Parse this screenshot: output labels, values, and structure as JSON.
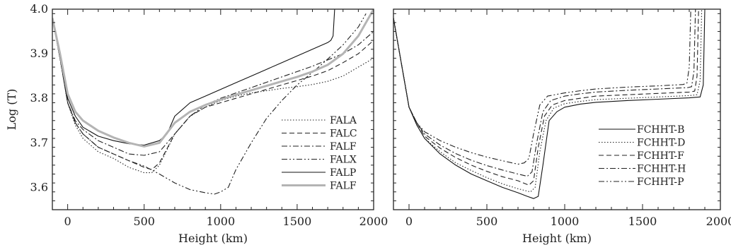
{
  "chart_data": [
    {
      "type": "line",
      "xlabel": "Height (km)",
      "ylabel": "Log (T)",
      "xlim": [
        -100,
        2000
      ],
      "ylim": [
        3.55,
        4.0
      ],
      "xticks": [
        0,
        500,
        1000,
        1500,
        2000
      ],
      "yticks": [
        3.6,
        3.7,
        3.8,
        3.9,
        4.0
      ],
      "xticklabels": [
        "0",
        "500",
        "1000",
        "1500",
        "2000"
      ],
      "yticklabels": [
        "3.6",
        "3.7",
        "3.8",
        "3.9",
        "4.0"
      ],
      "legend_position": "lower-right",
      "series": [
        {
          "name": "FALA",
          "style": "dotted",
          "color": "#222222",
          "x": [
            -100,
            -50,
            0,
            50,
            100,
            200,
            300,
            400,
            500,
            550,
            600,
            700,
            800,
            900,
            1000,
            1100,
            1200,
            1300,
            1400,
            1500,
            1600,
            1700,
            1800,
            1900,
            2000
          ],
          "y": [
            3.98,
            3.89,
            3.79,
            3.74,
            3.71,
            3.68,
            3.665,
            3.645,
            3.633,
            3.633,
            3.65,
            3.72,
            3.76,
            3.78,
            3.795,
            3.805,
            3.812,
            3.817,
            3.822,
            3.826,
            3.831,
            3.838,
            3.85,
            3.87,
            3.89
          ]
        },
        {
          "name": "FALC",
          "style": "dashed",
          "color": "#222222",
          "x": [
            -100,
            -50,
            0,
            50,
            100,
            200,
            300,
            400,
            500,
            550,
            600,
            700,
            800,
            900,
            1000,
            1100,
            1200,
            1300,
            1400,
            1500,
            1600,
            1700,
            1800,
            1900,
            2000
          ],
          "y": [
            3.98,
            3.89,
            3.79,
            3.745,
            3.72,
            3.69,
            3.675,
            3.66,
            3.645,
            3.64,
            3.655,
            3.72,
            3.76,
            3.78,
            3.79,
            3.8,
            3.81,
            3.82,
            3.83,
            3.84,
            3.85,
            3.862,
            3.88,
            3.9,
            3.93
          ]
        },
        {
          "name": "FALF",
          "style": "dashdot",
          "color": "#222222",
          "x": [
            -100,
            -50,
            0,
            50,
            100,
            200,
            300,
            400,
            500,
            600,
            700,
            800,
            900,
            1000,
            1100,
            1200,
            1300,
            1400,
            1500,
            1600,
            1700,
            1800,
            1900,
            2000
          ],
          "y": [
            3.98,
            3.89,
            3.79,
            3.75,
            3.73,
            3.705,
            3.69,
            3.675,
            3.672,
            3.68,
            3.72,
            3.76,
            3.785,
            3.8,
            3.812,
            3.824,
            3.836,
            3.848,
            3.86,
            3.872,
            3.886,
            3.9,
            3.92,
            3.95
          ]
        },
        {
          "name": "FALX",
          "style": "dashdotdot",
          "color": "#222222",
          "x": [
            -100,
            -50,
            0,
            50,
            100,
            200,
            300,
            400,
            500,
            600,
            700,
            800,
            900,
            960,
            1000,
            1050,
            1100,
            1200,
            1300,
            1400,
            1500,
            1600,
            1700,
            1800,
            1900,
            1950
          ],
          "y": [
            3.98,
            3.89,
            3.79,
            3.745,
            3.72,
            3.69,
            3.675,
            3.66,
            3.648,
            3.63,
            3.61,
            3.595,
            3.588,
            3.585,
            3.59,
            3.6,
            3.64,
            3.7,
            3.755,
            3.795,
            3.83,
            3.858,
            3.888,
            3.92,
            3.96,
            3.99
          ]
        },
        {
          "name": "FALP",
          "style": "solid",
          "color": "#111111",
          "x": [
            -100,
            -50,
            0,
            50,
            100,
            200,
            300,
            400,
            500,
            600,
            650,
            700,
            800,
            900,
            1000,
            1100,
            1200,
            1300,
            1400,
            1500,
            1600,
            1700,
            1720,
            1735,
            1740,
            1745
          ],
          "y": [
            3.98,
            3.89,
            3.8,
            3.76,
            3.735,
            3.715,
            3.705,
            3.698,
            3.695,
            3.705,
            3.72,
            3.76,
            3.79,
            3.805,
            3.82,
            3.835,
            3.85,
            3.865,
            3.88,
            3.895,
            3.91,
            3.925,
            3.93,
            3.94,
            3.97,
            4.0
          ]
        },
        {
          "name": "FALF",
          "style": "thick-gray",
          "color": "#b4b4b4",
          "x": [
            -100,
            -50,
            0,
            50,
            100,
            200,
            300,
            400,
            500,
            600,
            700,
            800,
            900,
            1000,
            1100,
            1200,
            1300,
            1400,
            1500,
            1600,
            1700,
            1800,
            1900,
            2000
          ],
          "y": [
            3.98,
            3.9,
            3.81,
            3.77,
            3.75,
            3.727,
            3.712,
            3.7,
            3.692,
            3.7,
            3.745,
            3.77,
            3.785,
            3.797,
            3.808,
            3.818,
            3.828,
            3.838,
            3.848,
            3.86,
            3.875,
            3.9,
            3.94,
            4.0
          ]
        }
      ]
    },
    {
      "type": "line",
      "xlabel": "Height (km)",
      "ylabel": "",
      "xlim": [
        -100,
        2000
      ],
      "ylim": [
        3.55,
        4.0
      ],
      "xticks": [
        0,
        500,
        1000,
        1500,
        2000
      ],
      "yticks": [
        3.6,
        3.7,
        3.8,
        3.9,
        4.0
      ],
      "xticklabels": [
        "0",
        "500",
        "1000",
        "1500",
        "2000"
      ],
      "legend_position": "lower-right",
      "series": [
        {
          "name": "FCHHT-B",
          "style": "solid",
          "color": "#111111",
          "x": [
            -100,
            -50,
            0,
            50,
            100,
            200,
            300,
            400,
            500,
            600,
            700,
            760,
            800,
            830,
            860,
            900,
            950,
            1000,
            1100,
            1200,
            1400,
            1600,
            1800,
            1870,
            1890,
            1900
          ],
          "y": [
            3.98,
            3.88,
            3.78,
            3.74,
            3.71,
            3.675,
            3.65,
            3.63,
            3.615,
            3.6,
            3.588,
            3.58,
            3.575,
            3.58,
            3.65,
            3.75,
            3.77,
            3.78,
            3.787,
            3.791,
            3.795,
            3.798,
            3.801,
            3.803,
            3.83,
            4.0
          ]
        },
        {
          "name": "FCHHT-D",
          "style": "dotted",
          "color": "#222222",
          "x": [
            -100,
            -50,
            0,
            50,
            100,
            200,
            300,
            400,
            500,
            600,
            700,
            780,
            810,
            840,
            880,
            930,
            1000,
            1100,
            1200,
            1400,
            1600,
            1800,
            1850,
            1870,
            1880
          ],
          "y": [
            3.98,
            3.88,
            3.78,
            3.74,
            3.71,
            3.68,
            3.655,
            3.638,
            3.622,
            3.608,
            3.597,
            3.59,
            3.6,
            3.68,
            3.75,
            3.778,
            3.788,
            3.793,
            3.797,
            3.8,
            3.803,
            3.806,
            3.808,
            3.84,
            4.0
          ]
        },
        {
          "name": "FCHHT-F",
          "style": "dashed",
          "color": "#222222",
          "x": [
            -100,
            -50,
            0,
            50,
            100,
            200,
            300,
            400,
            500,
            600,
            700,
            770,
            800,
            830,
            870,
            920,
            1000,
            1100,
            1200,
            1400,
            1600,
            1800,
            1835,
            1850,
            1860
          ],
          "y": [
            3.98,
            3.88,
            3.78,
            3.745,
            3.715,
            3.688,
            3.667,
            3.65,
            3.636,
            3.624,
            3.615,
            3.605,
            3.615,
            3.69,
            3.76,
            3.785,
            3.795,
            3.8,
            3.805,
            3.808,
            3.811,
            3.814,
            3.816,
            3.85,
            4.0
          ]
        },
        {
          "name": "FCHHT-H",
          "style": "dashdot",
          "color": "#222222",
          "x": [
            -100,
            -50,
            0,
            50,
            100,
            200,
            300,
            400,
            500,
            600,
            700,
            760,
            790,
            820,
            860,
            910,
            1000,
            1100,
            1200,
            1400,
            1600,
            1790,
            1815,
            1830,
            1840
          ],
          "y": [
            3.98,
            3.88,
            3.78,
            3.745,
            3.72,
            3.695,
            3.676,
            3.661,
            3.649,
            3.639,
            3.63,
            3.625,
            3.635,
            3.7,
            3.77,
            3.795,
            3.805,
            3.81,
            3.814,
            3.818,
            3.821,
            3.824,
            3.826,
            3.86,
            4.0
          ]
        },
        {
          "name": "FCHHT-P",
          "style": "dashdotdot",
          "color": "#222222",
          "x": [
            -100,
            -50,
            0,
            50,
            100,
            200,
            300,
            400,
            500,
            600,
            700,
            740,
            770,
            800,
            840,
            890,
            1000,
            1100,
            1200,
            1400,
            1600,
            1760,
            1785,
            1800,
            1810
          ],
          "y": [
            3.98,
            3.88,
            3.78,
            3.745,
            3.725,
            3.705,
            3.69,
            3.678,
            3.668,
            3.66,
            3.652,
            3.655,
            3.665,
            3.72,
            3.785,
            3.805,
            3.812,
            3.817,
            3.821,
            3.825,
            3.828,
            3.831,
            3.834,
            3.87,
            4.0
          ]
        }
      ]
    }
  ]
}
